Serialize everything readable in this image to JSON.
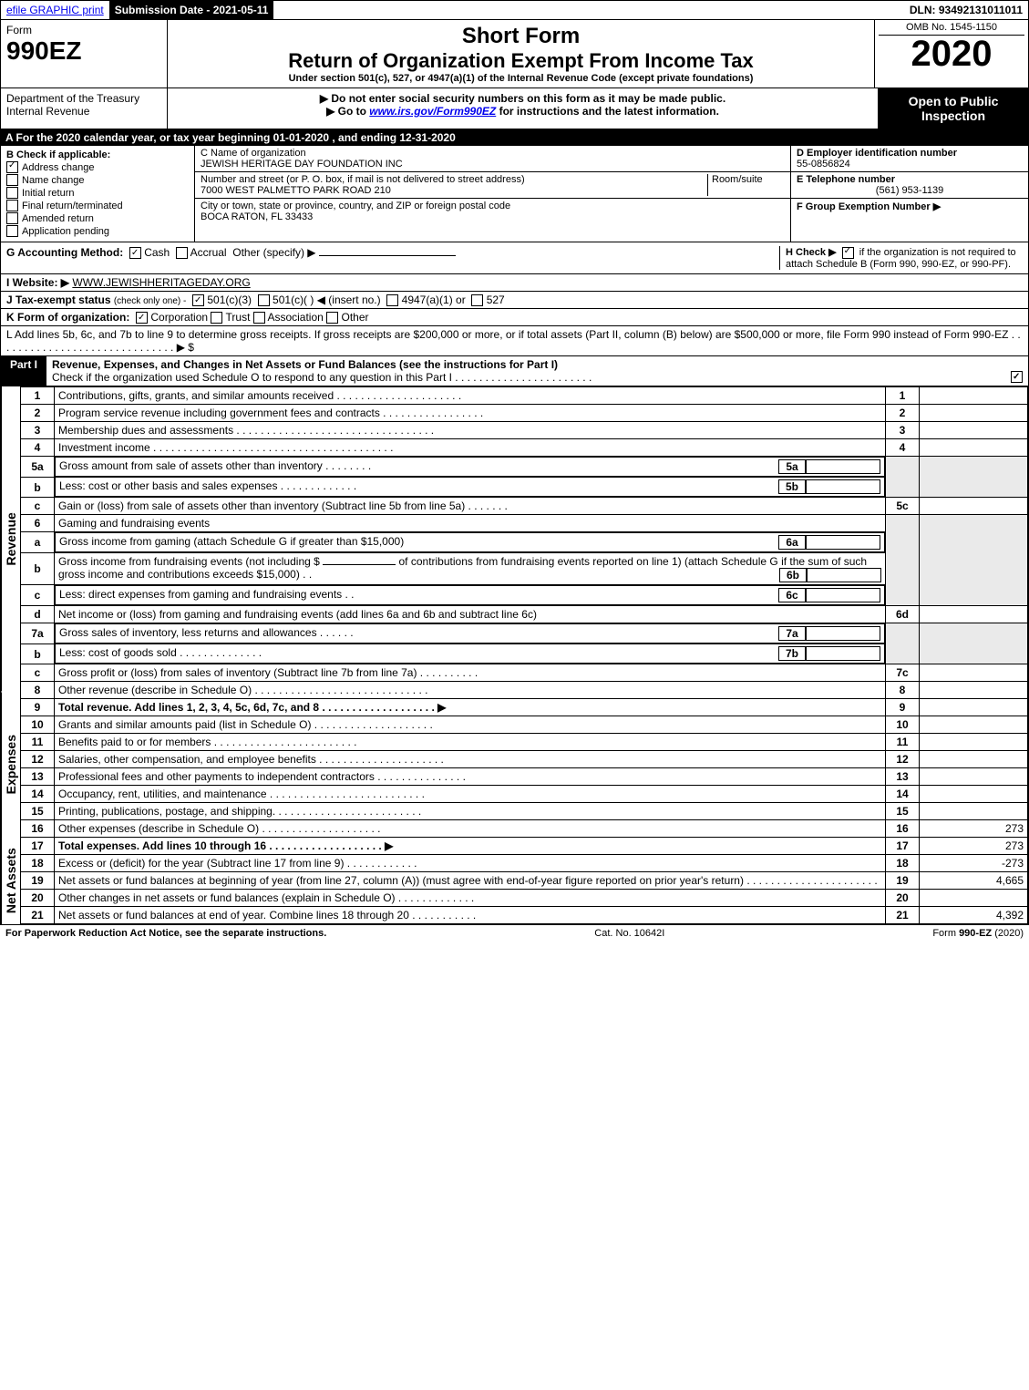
{
  "topbar": {
    "efile": "efile GRAPHIC print",
    "submission_label": "Submission Date - 2021-05-11",
    "dln": "DLN: 93492131011011"
  },
  "header": {
    "form_word": "Form",
    "form_number": "990EZ",
    "short_form": "Short Form",
    "return_title": "Return of Organization Exempt From Income Tax",
    "under_section": "Under section 501(c), 527, or 4947(a)(1) of the Internal Revenue Code (except private foundations)",
    "omb": "OMB No. 1545-1150",
    "year": "2020",
    "dept": "Department of the Treasury\nInternal Revenue",
    "no_ssn": "▶ Do not enter social security numbers on this form as it may be made public.",
    "goto": "▶ Go to ",
    "goto_link": "www.irs.gov/Form990EZ",
    "goto_rest": " for instructions and the latest information.",
    "open": "Open to Public Inspection"
  },
  "line_a": "A  For the 2020 calendar year, or tax year beginning 01-01-2020 , and ending 12-31-2020",
  "section_b": {
    "title": "B  Check if applicable:",
    "items": [
      {
        "checked": true,
        "label": "Address change"
      },
      {
        "checked": false,
        "label": "Name change"
      },
      {
        "checked": false,
        "label": "Initial return"
      },
      {
        "checked": false,
        "label": "Final return/terminated"
      },
      {
        "checked": false,
        "label": "Amended return"
      },
      {
        "checked": false,
        "label": "Application pending"
      }
    ]
  },
  "section_c": {
    "name_label": "C Name of organization",
    "name": "JEWISH HERITAGE DAY FOUNDATION INC",
    "addr_label": "Number and street (or P. O. box, if mail is not delivered to street address)",
    "room_label": "Room/suite",
    "addr": "7000 WEST PALMETTO PARK ROAD 210",
    "city_label": "City or town, state or province, country, and ZIP or foreign postal code",
    "city": "BOCA RATON, FL  33433"
  },
  "section_d": {
    "label": "D Employer identification number",
    "value": "55-0856824"
  },
  "section_e": {
    "label": "E Telephone number",
    "value": "(561) 953-1139"
  },
  "section_f": {
    "label": "F Group Exemption Number  ▶"
  },
  "section_g": {
    "label": "G Accounting Method:",
    "cash": "Cash",
    "accrual": "Accrual",
    "other": "Other (specify) ▶"
  },
  "section_h": {
    "label": "H  Check ▶",
    "text": "if the organization is not required to attach Schedule B (Form 990, 990-EZ, or 990-PF)."
  },
  "section_i": {
    "label": "I Website: ▶",
    "value": "WWW.JEWISHHERITAGEDAY.ORG"
  },
  "section_j": {
    "label": "J Tax-exempt status",
    "sub": "(check only one) -",
    "opt1": "501(c)(3)",
    "opt2": "501(c)(  ) ◀ (insert no.)",
    "opt3": "4947(a)(1) or",
    "opt4": "527"
  },
  "section_k": {
    "label": "K Form of organization:",
    "opts": [
      "Corporation",
      "Trust",
      "Association",
      "Other"
    ]
  },
  "section_l": "L Add lines 5b, 6c, and 7b to line 9 to determine gross receipts. If gross receipts are $200,000 or more, or if total assets (Part II, column (B) below) are $500,000 or more, file Form 990 instead of Form 990-EZ  . . . . . . . . . . . . . . . . . . . . . . . . . . . . . .  ▶ $",
  "part1": {
    "label": "Part I",
    "title": "Revenue, Expenses, and Changes in Net Assets or Fund Balances (see the instructions for Part I)",
    "check_text": "Check if the organization used Schedule O to respond to any question in this Part I . . . . . . . . . . . . . . . . . . . . . . .",
    "revenue_label": "Revenue",
    "expenses_label": "Expenses",
    "netassets_label": "Net Assets"
  },
  "lines": {
    "l1": "Contributions, gifts, grants, and similar amounts received . . . . . . . . . . . . . . . . . . . . .",
    "l2": "Program service revenue including government fees and contracts . . . . . . . . . . . . . . . . .",
    "l3": "Membership dues and assessments . . . . . . . . . . . . . . . . . . . . . . . . . . . . . . . . .",
    "l4": "Investment income . . . . . . . . . . . . . . . . . . . . . . . . . . . . . . . . . . . . . . . .",
    "l5a": "Gross amount from sale of assets other than inventory . . . . . . . .",
    "l5b": "Less: cost or other basis and sales expenses . . . . . . . . . . . . .",
    "l5c": "Gain or (loss) from sale of assets other than inventory (Subtract line 5b from line 5a) . . . . . . .",
    "l6": "Gaming and fundraising events",
    "l6a": "Gross income from gaming (attach Schedule G if greater than $15,000)",
    "l6b1": "Gross income from fundraising events (not including $",
    "l6b2": "of contributions from fundraising events reported on line 1) (attach Schedule G if the sum of such gross income and contributions exceeds $15,000)  .  .",
    "l6c": "Less: direct expenses from gaming and fundraising events  .  .",
    "l6d": "Net income or (loss) from gaming and fundraising events (add lines 6a and 6b and subtract line 6c)",
    "l7a": "Gross sales of inventory, less returns and allowances . . . . . .",
    "l7b": "Less: cost of goods sold       .  .  .  .  .  .  .  .  .  .  .  .  .  .",
    "l7c": "Gross profit or (loss) from sales of inventory (Subtract line 7b from line 7a) . . . . . . . . . .",
    "l8": "Other revenue (describe in Schedule O) . . . . . . . . . . . . . . . . . . . . . . . . . . . . .",
    "l9": "Total revenue. Add lines 1, 2, 3, 4, 5c, 6d, 7c, and 8  . . . . . . . . . . . . . . . . . . .  ▶",
    "l10": "Grants and similar amounts paid (list in Schedule O) . . . . . . . . . . . . . . . . . . . .",
    "l11": "Benefits paid to or for members      .  .  .  .  .  .  .  .  .  .  .  .  .  .  .  .  .  .  .  .  .  .  .  .",
    "l12": "Salaries, other compensation, and employee benefits . . . . . . . . . . . . . . . . . . . . .",
    "l13": "Professional fees and other payments to independent contractors . . . . . . . . . . . . . . .",
    "l14": "Occupancy, rent, utilities, and maintenance . . . . . . . . . . . . . . . . . . . . . . . . . .",
    "l15": "Printing, publications, postage, and shipping. . . . . . . . . . . . . . . . . . . . . . . . .",
    "l16": "Other expenses (describe in Schedule O)     .  .  .  .  .  .  .  .  .  .  .  .  .  .  .  .  .  .  .  .",
    "l17": "Total expenses. Add lines 10 through 16     .  .  .  .  .  .  .  .  .  .  .  .  .  .  .  .  .  .  .  ▶",
    "l18": "Excess or (deficit) for the year (Subtract line 17 from line 9)       .  .  .  .  .  .  .  .  .  .  .  .",
    "l19": "Net assets or fund balances at beginning of year (from line 27, column (A)) (must agree with end-of-year figure reported on prior year's return) . . . . . . . . . . . . . . . . . . . . . .",
    "l20": "Other changes in net assets or fund balances (explain in Schedule O) . . . . . . . . . . . . .",
    "l21": "Net assets or fund balances at end of year. Combine lines 18 through 20 . . . . . . . . . . ."
  },
  "line_nums": {
    "n1": "1",
    "n2": "2",
    "n3": "3",
    "n4": "4",
    "n5a": "5a",
    "n5b": "b",
    "n5b_box": "5b",
    "n5a_box": "5a",
    "n5c": "c",
    "n5c_box": "5c",
    "n6": "6",
    "n6a": "a",
    "n6a_box": "6a",
    "n6b": "b",
    "n6b_box": "6b",
    "n6c": "c",
    "n6c_box": "6c",
    "n6d": "d",
    "n6d_box": "6d",
    "n7a": "7a",
    "n7a_box": "7a",
    "n7b": "b",
    "n7b_box": "7b",
    "n7c": "c",
    "n7c_box": "7c",
    "n8": "8",
    "n9": "9",
    "n10": "10",
    "n11": "11",
    "n12": "12",
    "n13": "13",
    "n14": "14",
    "n15": "15",
    "n16": "16",
    "n17": "17",
    "n18": "18",
    "n19": "19",
    "n20": "20",
    "n21": "21"
  },
  "amounts": {
    "a16": "273",
    "a17": "273",
    "a18": "-273",
    "a19": "4,665",
    "a21": "4,392"
  },
  "footer": {
    "left": "For Paperwork Reduction Act Notice, see the separate instructions.",
    "center": "Cat. No. 10642I",
    "right": "Form 990-EZ (2020)"
  }
}
